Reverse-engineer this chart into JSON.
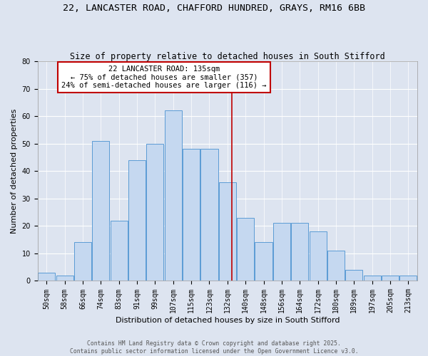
{
  "title": "22, LANCASTER ROAD, CHAFFORD HUNDRED, GRAYS, RM16 6BB",
  "subtitle": "Size of property relative to detached houses in South Stifford",
  "xlabel": "Distribution of detached houses by size in South Stifford",
  "ylabel": "Number of detached properties",
  "footer_line1": "Contains HM Land Registry data © Crown copyright and database right 2025.",
  "footer_line2": "Contains public sector information licensed under the Open Government Licence v3.0.",
  "bar_labels": [
    "50sqm",
    "58sqm",
    "66sqm",
    "74sqm",
    "83sqm",
    "91sqm",
    "99sqm",
    "107sqm",
    "115sqm",
    "123sqm",
    "132sqm",
    "140sqm",
    "148sqm",
    "156sqm",
    "164sqm",
    "172sqm",
    "180sqm",
    "189sqm",
    "197sqm",
    "205sqm",
    "213sqm"
  ],
  "bar_heights": [
    3,
    2,
    14,
    51,
    22,
    44,
    50,
    62,
    48,
    48,
    36,
    23,
    14,
    21,
    21,
    18,
    11,
    4,
    2,
    2,
    2
  ],
  "bar_color": "#c5d8f0",
  "bar_edge_color": "#5b9bd5",
  "vline_color": "#c00000",
  "annotation_title": "22 LANCASTER ROAD: 135sqm",
  "annotation_line1": "← 75% of detached houses are smaller (357)",
  "annotation_line2": "24% of semi-detached houses are larger (116) →",
  "annotation_box_color": "#c00000",
  "ylim": [
    0,
    80
  ],
  "yticks": [
    0,
    10,
    20,
    30,
    40,
    50,
    60,
    70,
    80
  ],
  "background_color": "#dde4f0",
  "plot_bg_color": "#dde4f0",
  "grid_color": "#ffffff",
  "title_fontsize": 9.5,
  "subtitle_fontsize": 8.5,
  "axis_label_fontsize": 8,
  "tick_fontsize": 7,
  "annotation_fontsize": 7.5,
  "footer_fontsize": 5.8,
  "vline_x_index": 10.25
}
